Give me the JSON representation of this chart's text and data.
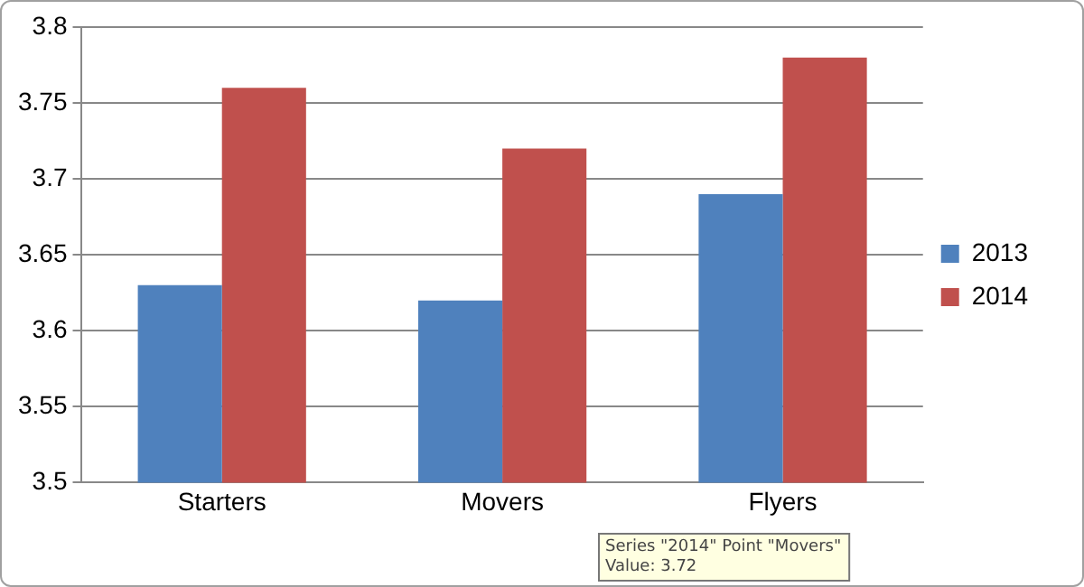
{
  "chart_data": {
    "type": "bar",
    "categories": [
      "Starters",
      "Movers",
      "Flyers"
    ],
    "series": [
      {
        "name": "2013",
        "color": "#4f81bd",
        "values": [
          3.63,
          3.62,
          3.69
        ]
      },
      {
        "name": "2014",
        "color": "#c0504d",
        "values": [
          3.76,
          3.72,
          3.78
        ]
      }
    ],
    "ylim": [
      3.5,
      3.8
    ],
    "yticks": [
      3.5,
      3.55,
      3.6,
      3.65,
      3.7,
      3.75,
      3.8
    ],
    "grid": "y",
    "legend": "right",
    "annotations": [
      "Series \"2014\" Point \"Movers\"",
      "Value: 3.72"
    ]
  }
}
